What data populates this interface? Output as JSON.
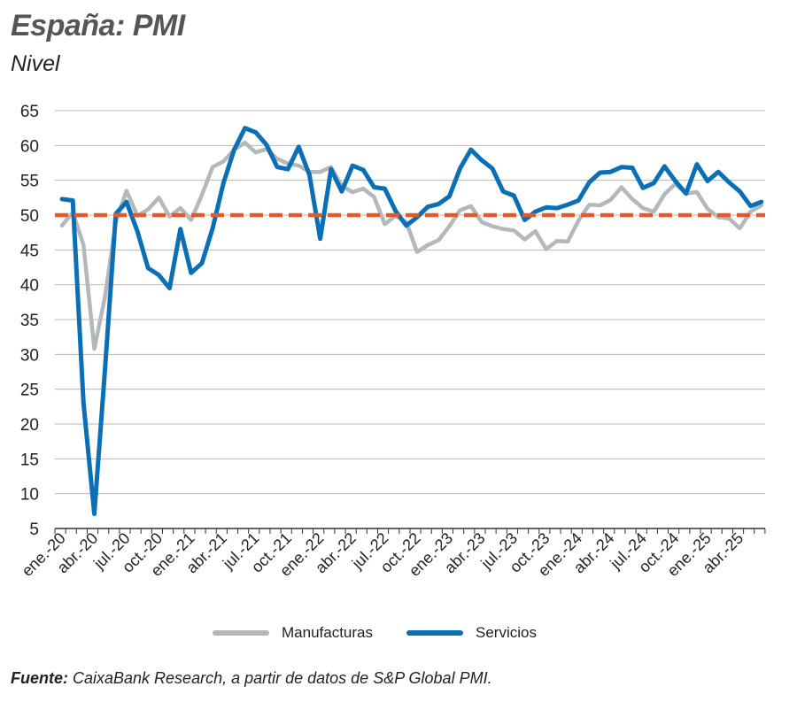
{
  "title": "España: PMI",
  "subtitle": "Nivel",
  "colors": {
    "manufacturas": "#b2b8bb",
    "servicios": "#0a6fb5",
    "reference": "#e05a2e",
    "grid": "#b8b8b8"
  },
  "legend": {
    "manufacturas": "Manufacturas",
    "servicios": "Servicios"
  },
  "footer": {
    "source_label": "Fuente:",
    "source_text": " CaixaBank Research, a partir de datos de S&P Global PMI."
  },
  "chart_data": {
    "type": "line",
    "title": "España: PMI",
    "subtitle": "Nivel",
    "xlabel": "",
    "ylabel": "",
    "ylim": [
      5,
      65
    ],
    "yticks": [
      5,
      10,
      15,
      20,
      25,
      30,
      35,
      40,
      45,
      50,
      55,
      60,
      65
    ],
    "grid": true,
    "legend_position": "bottom",
    "x": [
      "ene.-20",
      "feb.-20",
      "mar.-20",
      "abr.-20",
      "may.-20",
      "jun.-20",
      "jul.-20",
      "ago.-20",
      "sep.-20",
      "oct.-20",
      "nov.-20",
      "dic.-20",
      "ene.-21",
      "feb.-21",
      "mar.-21",
      "abr.-21",
      "may.-21",
      "jun.-21",
      "jul.-21",
      "ago.-21",
      "sep.-21",
      "oct.-21",
      "nov.-21",
      "dic.-21",
      "ene.-22",
      "feb.-22",
      "mar.-22",
      "abr.-22",
      "may.-22",
      "jun.-22",
      "jul.-22",
      "ago.-22",
      "sep.-22",
      "oct.-22",
      "nov.-22",
      "dic.-22",
      "ene.-23",
      "feb.-23",
      "mar.-23",
      "abr.-23",
      "may.-23",
      "jun.-23",
      "jul.-23",
      "ago.-23",
      "sep.-23",
      "oct.-23",
      "nov.-23",
      "dic.-23",
      "ene.-24",
      "feb.-24",
      "mar.-24",
      "abr.-24",
      "may.-24",
      "jun.-24",
      "jul.-24",
      "ago.-24",
      "sep.-24",
      "oct.-24",
      "nov.-24",
      "dic.-24",
      "ene.-25",
      "feb.-25",
      "mar.-25",
      "abr.-25",
      "may.-25",
      "jun.-25"
    ],
    "xtick_labels": [
      "ene.-20",
      "abr.-20",
      "jul.-20",
      "oct.-20",
      "ene.-21",
      "abr.-21",
      "jul.-21",
      "oct.-21",
      "ene.-22",
      "abr.-22",
      "jul.-22",
      "oct.-22",
      "ene.-23",
      "abr.-23",
      "jul.-23",
      "oct.-23",
      "ene.-24",
      "abr.-24",
      "jul.-24",
      "oct.-24",
      "ene.-25",
      "abr.-25"
    ],
    "reference_line": {
      "y": 50,
      "style": "dashed"
    },
    "series": [
      {
        "name": "Manufacturas",
        "values": [
          48.5,
          50.4,
          45.7,
          30.8,
          38.3,
          49.0,
          53.5,
          49.9,
          50.8,
          52.5,
          49.8,
          51.0,
          49.3,
          52.9,
          56.9,
          57.7,
          59.4,
          60.4,
          59.0,
          59.5,
          58.1,
          57.4,
          57.1,
          56.2,
          56.2,
          56.9,
          54.2,
          53.3,
          53.8,
          52.6,
          48.7,
          49.9,
          49.0,
          44.7,
          45.7,
          46.4,
          48.4,
          50.7,
          51.3,
          49.0,
          48.4,
          48.0,
          47.8,
          46.5,
          47.7,
          45.1,
          46.3,
          46.2,
          49.2,
          51.5,
          51.4,
          52.2,
          54.0,
          52.3,
          51.0,
          50.5,
          53.0,
          54.5,
          53.1,
          53.3,
          50.9,
          49.7,
          49.5,
          48.1,
          50.5,
          51.4
        ]
      },
      {
        "name": "Servicios",
        "values": [
          52.3,
          52.1,
          23.0,
          7.1,
          27.9,
          50.2,
          51.9,
          47.7,
          42.4,
          41.4,
          39.5,
          48.0,
          41.7,
          43.1,
          48.1,
          54.6,
          59.4,
          62.5,
          61.9,
          60.1,
          56.9,
          56.6,
          59.8,
          55.8,
          46.6,
          56.6,
          53.4,
          57.1,
          56.5,
          54.0,
          53.8,
          50.6,
          48.5,
          49.7,
          51.2,
          51.6,
          52.7,
          56.7,
          59.4,
          57.9,
          56.7,
          53.4,
          52.8,
          49.3,
          50.5,
          51.1,
          51.0,
          51.5,
          52.1,
          54.7,
          56.1,
          56.2,
          56.9,
          56.8,
          53.9,
          54.6,
          57.0,
          54.9,
          53.1,
          57.3,
          54.9,
          56.2,
          54.7,
          53.4,
          51.3,
          51.9
        ]
      }
    ]
  }
}
